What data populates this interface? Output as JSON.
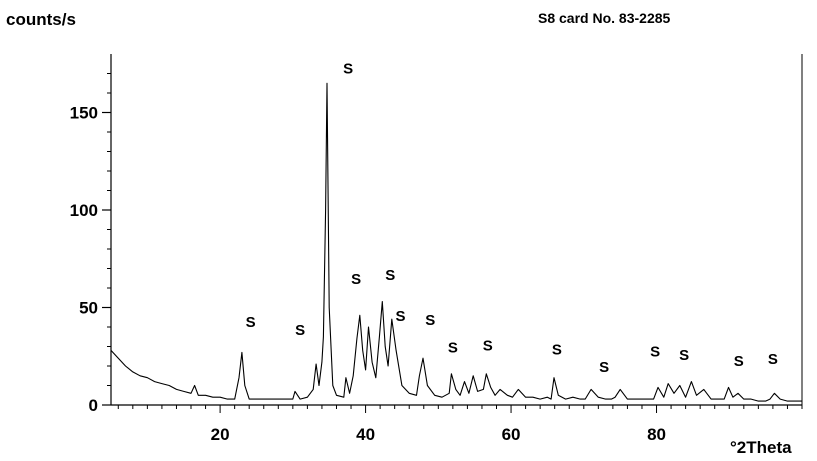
{
  "chart_data": {
    "type": "line",
    "xlabel": "°2Theta",
    "ylabel": "counts/s",
    "reference_label": "S8 card No. 83-2285",
    "xlim": [
      5,
      100
    ],
    "ylim": [
      0,
      180
    ],
    "x_ticks": [
      20,
      40,
      60,
      80
    ],
    "y_ticks": [
      0,
      50,
      100,
      150
    ],
    "grid": false,
    "series": [
      {
        "color": "#000000",
        "x": [
          5,
          6,
          7,
          8,
          9,
          10,
          11,
          12,
          13,
          14,
          15,
          16,
          16.5,
          17,
          18,
          19,
          20,
          21,
          22,
          22.6,
          23,
          23.4,
          24,
          26,
          28,
          30,
          30.3,
          31,
          32,
          32.8,
          33.2,
          33.6,
          34,
          34.2,
          34.5,
          34.7,
          35,
          35.5,
          36,
          37,
          37.3,
          37.8,
          38.3,
          38.8,
          39.2,
          39.6,
          40,
          40.4,
          40.9,
          41.4,
          41.9,
          42.3,
          42.7,
          43.1,
          43.6,
          44.2,
          45,
          46,
          47,
          47.4,
          47.9,
          48.5,
          49.5,
          50.5,
          51.5,
          51.8,
          52.4,
          53,
          53.6,
          54.2,
          54.8,
          55.4,
          56.2,
          56.6,
          57.2,
          57.8,
          58.5,
          59.5,
          60.2,
          61,
          62,
          63,
          64,
          65,
          65.5,
          65.9,
          66.5,
          67.5,
          68.5,
          69.5,
          70.2,
          71,
          72,
          73,
          73.8,
          74.3,
          75,
          76,
          77,
          78,
          79,
          79.6,
          80.2,
          81,
          81.6,
          82.4,
          83.2,
          84,
          84.8,
          85.5,
          86.5,
          87.5,
          88.5,
          89.3,
          89.9,
          90.5,
          91.2,
          92,
          93,
          94,
          95,
          95.6,
          96.2,
          97,
          98,
          99,
          100
        ],
        "y": [
          28,
          24,
          20,
          17,
          15,
          14,
          12,
          11,
          10,
          8,
          7,
          6,
          10,
          5,
          5,
          4,
          4,
          3,
          3,
          14,
          27,
          10,
          3,
          3,
          3,
          3,
          7,
          3,
          4,
          8,
          21,
          10,
          22,
          35,
          100,
          165,
          50,
          10,
          5,
          4,
          14,
          6,
          15,
          34,
          46,
          28,
          18,
          40,
          22,
          14,
          35,
          53,
          30,
          20,
          44,
          28,
          10,
          6,
          5,
          15,
          24,
          10,
          5,
          4,
          6,
          16,
          8,
          5,
          12,
          6,
          15,
          7,
          8,
          16,
          9,
          5,
          8,
          5,
          4,
          8,
          4,
          4,
          3,
          4,
          3,
          14,
          5,
          3,
          4,
          3,
          3,
          8,
          4,
          3,
          3,
          4,
          8,
          3,
          3,
          3,
          3,
          3,
          9,
          4,
          11,
          6,
          10,
          4,
          12,
          5,
          8,
          3,
          3,
          3,
          9,
          4,
          6,
          3,
          3,
          2,
          2,
          3,
          6,
          3,
          2,
          2,
          2
        ]
      }
    ],
    "annotations": [
      {
        "text": "S",
        "x": 37.6,
        "y": 170
      },
      {
        "text": "S",
        "x": 24.2,
        "y": 40
      },
      {
        "text": "S",
        "x": 31.0,
        "y": 36
      },
      {
        "text": "S",
        "x": 38.7,
        "y": 62
      },
      {
        "text": "S",
        "x": 43.4,
        "y": 64
      },
      {
        "text": "S",
        "x": 44.8,
        "y": 43
      },
      {
        "text": "S",
        "x": 48.9,
        "y": 41
      },
      {
        "text": "S",
        "x": 52.0,
        "y": 27
      },
      {
        "text": "S",
        "x": 56.8,
        "y": 28
      },
      {
        "text": "S",
        "x": 66.3,
        "y": 26
      },
      {
        "text": "S",
        "x": 72.8,
        "y": 17
      },
      {
        "text": "S",
        "x": 79.8,
        "y": 25
      },
      {
        "text": "S",
        "x": 83.8,
        "y": 23
      },
      {
        "text": "S",
        "x": 91.3,
        "y": 20
      },
      {
        "text": "S",
        "x": 96.0,
        "y": 21
      }
    ]
  }
}
